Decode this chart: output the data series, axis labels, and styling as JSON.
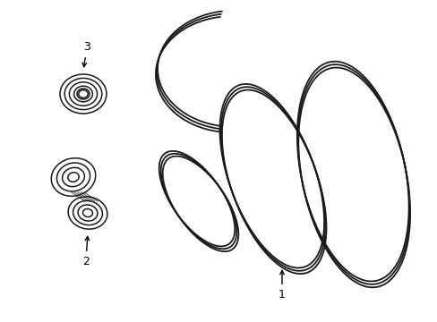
{
  "background_color": "#ffffff",
  "line_color": "#1a1a1a",
  "label_color": "#000000",
  "figsize": [
    4.89,
    3.6
  ],
  "dpi": 100,
  "lw_belt": 1.3,
  "lw_parts": 1.1,
  "label_fontsize": 9
}
